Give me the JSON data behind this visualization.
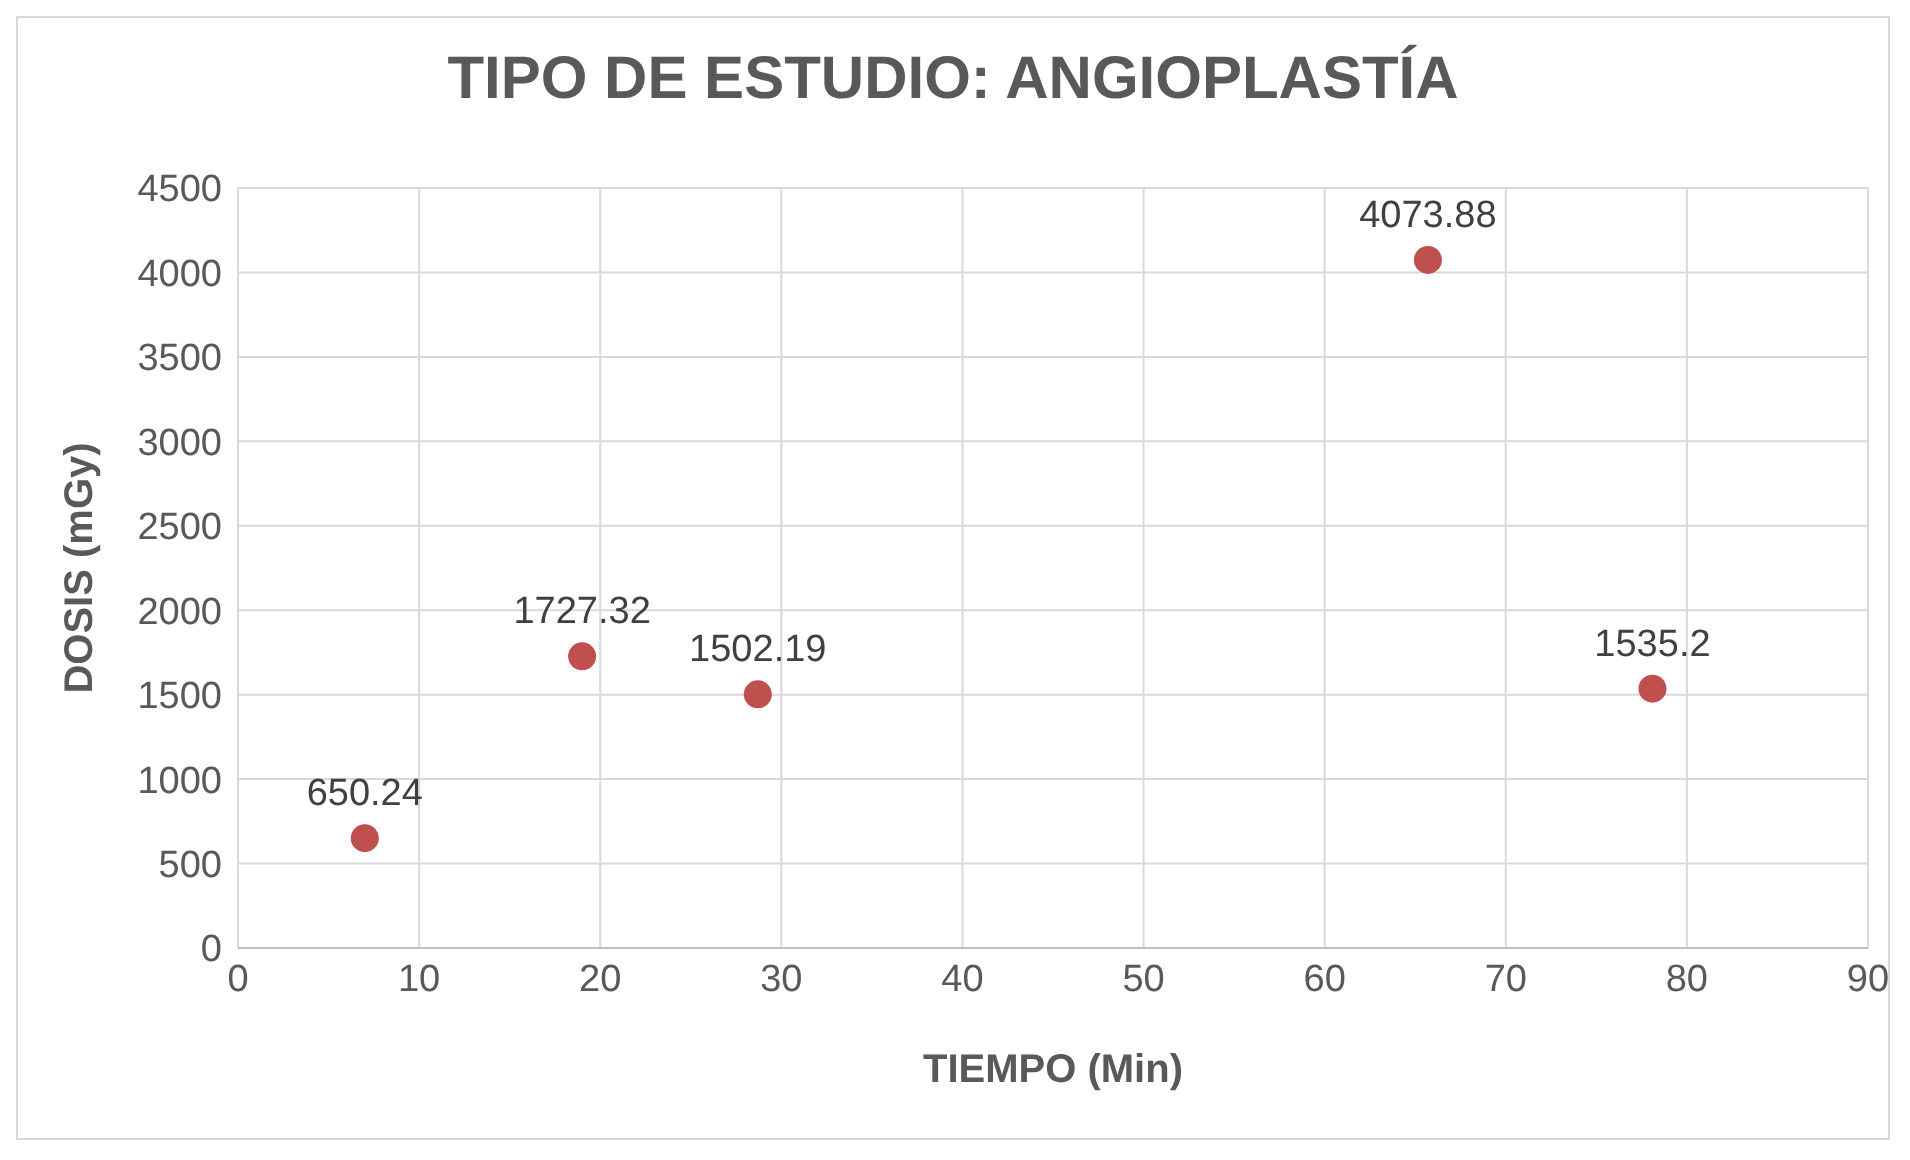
{
  "chart_data": {
    "type": "scatter",
    "title": "TIPO DE ESTUDIO: ANGIOPLASTÍA",
    "xlabel": "TIEMPO (Min)",
    "ylabel": "DOSIS (mGy)",
    "x": [
      7,
      19,
      28.7,
      65.7,
      78.1
    ],
    "series": [
      {
        "color": "#c0504d",
        "values": [
          650.24,
          1727.32,
          1502.19,
          4073.88,
          1535.2
        ]
      }
    ],
    "xlim": [
      0,
      90
    ],
    "xticks": [
      0,
      10,
      20,
      30,
      40,
      50,
      60,
      70,
      80,
      90
    ],
    "ylim": [
      0,
      4500
    ],
    "yticks": [
      0,
      500,
      1000,
      1500,
      2000,
      2500,
      3000,
      3500,
      4000,
      4500
    ],
    "grid": true,
    "marker": "circle",
    "data_labels": true,
    "legend": false
  }
}
